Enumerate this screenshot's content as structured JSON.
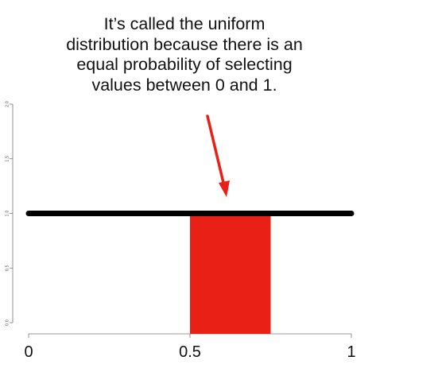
{
  "annotation": {
    "lines": [
      "It’s called the uniform",
      "distribution because there is an",
      "equal probability of selecting",
      "values between 0 and 1."
    ]
  },
  "chart_data": {
    "type": "line",
    "x": [
      0,
      1
    ],
    "y": [
      1,
      1
    ],
    "xlim": [
      0,
      1
    ],
    "ylim": [
      0,
      2
    ],
    "xticks": [
      0,
      0.5,
      1
    ],
    "xtick_labels": [
      "0",
      "0.5",
      "1"
    ],
    "yticks": [
      0,
      0.5,
      1,
      1.5,
      2
    ],
    "ytick_labels": [
      "0.0",
      "0.5",
      "1.0",
      "1.5",
      "2.0"
    ],
    "shaded_region": {
      "x": [
        0.5,
        0.75
      ],
      "color": "#e82015"
    },
    "line_color": "#000000",
    "arrow_color": "#e82015",
    "grid": false,
    "title": "",
    "xlabel": "",
    "ylabel": ""
  }
}
